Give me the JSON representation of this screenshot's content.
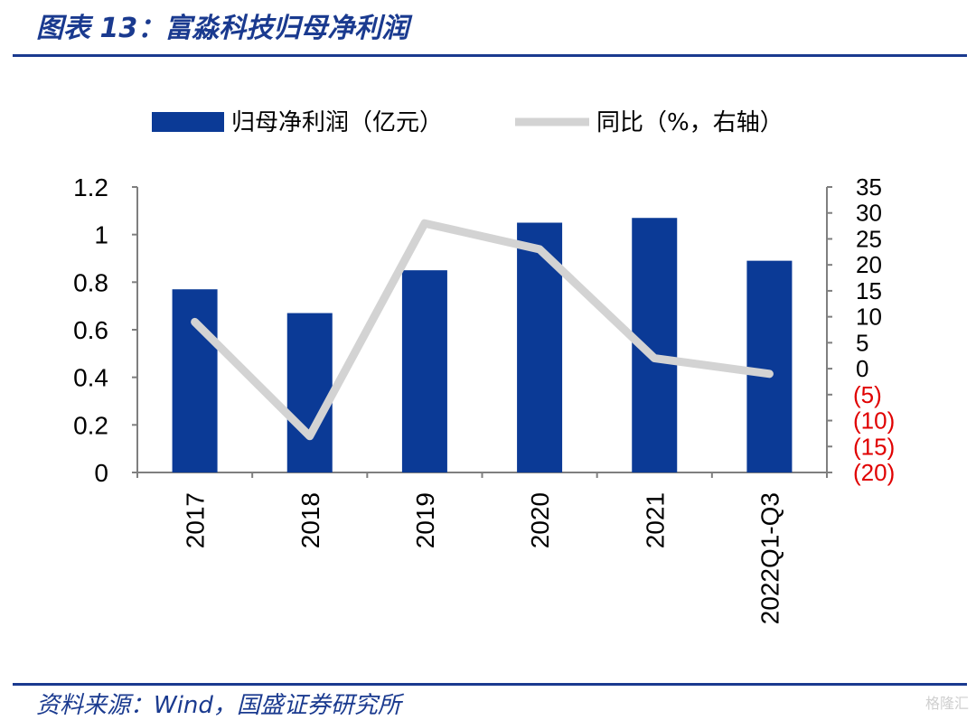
{
  "header": {
    "title": "图表 13：富淼科技归母净利润"
  },
  "footer": {
    "source": "资料来源：Wind，国盛证券研究所",
    "watermark": "格隆汇"
  },
  "colors": {
    "bar": "#0b3a96",
    "line": "#d3d3d3",
    "negative_tick": "#e00000",
    "axis": "#7f7f7f",
    "title": "#1a3a8f"
  },
  "chart_data": {
    "type": "bar",
    "categories": [
      "2017",
      "2018",
      "2019",
      "2020",
      "2021",
      "2022Q1-Q3"
    ],
    "series": [
      {
        "name": "归母净利润（亿元）",
        "type": "bar",
        "axis": "left",
        "values": [
          0.77,
          0.67,
          0.85,
          1.05,
          1.07,
          0.89
        ]
      },
      {
        "name": "同比（%，右轴）",
        "type": "line",
        "axis": "right",
        "values": [
          9,
          -13,
          28,
          23,
          2,
          -1
        ]
      }
    ],
    "y_left": {
      "min": 0,
      "max": 1.2,
      "ticks": [
        "0",
        "0.2",
        "0.4",
        "0.6",
        "0.8",
        "1",
        "1.2"
      ]
    },
    "y_right": {
      "min": -20,
      "max": 35,
      "ticks": [
        "(20)",
        "(15)",
        "(10)",
        "(5)",
        "0",
        "5",
        "10",
        "15",
        "20",
        "25",
        "30",
        "35"
      ]
    },
    "legend": "top",
    "grid": false
  }
}
